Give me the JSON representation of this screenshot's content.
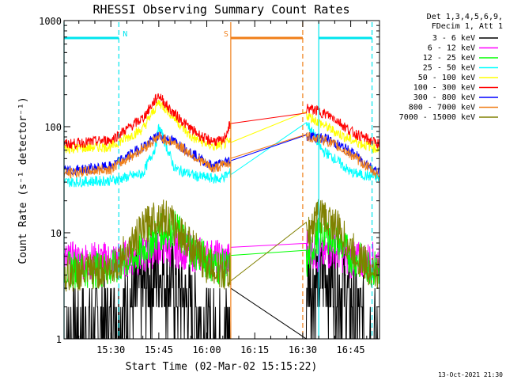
{
  "chart_data": {
    "type": "line",
    "title": "RHESSI Observing Summary Count Rates",
    "xlabel": "Start Time (02-Mar-02 15:15:22)",
    "ylabel": "Count Rate (s⁻¹ detector⁻¹)",
    "yscale": "log",
    "xlim": [
      "15:15:22",
      "16:54:00"
    ],
    "ylim": [
      1,
      1000
    ],
    "x_ticks": [
      "15:30",
      "15:45",
      "16:00",
      "16:15",
      "16:30",
      "16:45"
    ],
    "y_ticks": [
      "1",
      "10",
      "100",
      "1000"
    ],
    "legend_header": [
      "Det 1,3,4,5,6,9,",
      "FDecim 1, Att 1"
    ],
    "legend_position": "right",
    "footer": "13-Oct-2021 21:30",
    "flags": [
      {
        "label": "N",
        "color": "#00e5ee",
        "start": "15:15:22",
        "end": "15:32:30"
      },
      {
        "label": "S",
        "color": "#f07f19",
        "start": "16:07:30",
        "end": "16:30:00"
      },
      {
        "label": "",
        "color": "#00e5ee",
        "start": "16:35:00",
        "end": "16:51:40"
      }
    ],
    "vlines": [
      {
        "time": "15:15:22",
        "color": "#00e5ee",
        "style": "solid"
      },
      {
        "time": "15:32:30",
        "color": "#00e5ee",
        "style": "dashed"
      },
      {
        "time": "16:07:30",
        "color": "#f07f19",
        "style": "solid"
      },
      {
        "time": "16:30:00",
        "color": "#f07f19",
        "style": "dashed"
      },
      {
        "time": "16:35:00",
        "color": "#00e5ee",
        "style": "solid"
      },
      {
        "time": "16:51:40",
        "color": "#00e5ee",
        "style": "dashed"
      }
    ],
    "gap": {
      "start": "16:07:30",
      "end": "16:31:00"
    },
    "series": [
      {
        "name": "3 - 6 keV",
        "color": "#000000",
        "x": [
          "15:15:22",
          "15:33:00",
          "15:40:00",
          "15:45:00",
          "15:50:00",
          "15:57:00",
          "16:02:00",
          "16:32:00",
          "16:38:00",
          "16:43:00",
          "16:48:00",
          "16:53:00"
        ],
        "y": [
          1,
          1.6,
          3,
          4.5,
          3,
          1.6,
          1,
          3.5,
          4,
          3,
          1.5,
          1
        ]
      },
      {
        "name": "6 - 12 keV",
        "color": "#ff00ff",
        "x": [
          "15:15:22",
          "15:30:00",
          "15:40:00",
          "15:45:00",
          "15:50:00",
          "16:00:00",
          "16:07:00",
          "16:31:00",
          "16:35:00",
          "16:40:00",
          "16:45:00",
          "16:53:00"
        ],
        "y": [
          5.5,
          5.5,
          6,
          7.5,
          7,
          6,
          5.5,
          8,
          6,
          7,
          5.5,
          5.5
        ]
      },
      {
        "name": "12 - 25 keV",
        "color": "#00ff00",
        "x": [
          "15:15:22",
          "15:30:00",
          "15:38:00",
          "15:45:00",
          "15:50:00",
          "15:55:00",
          "16:02:00",
          "16:07:00",
          "16:31:00",
          "16:35:00",
          "16:40:00",
          "16:45:00",
          "16:53:00"
        ],
        "y": [
          4.5,
          4.5,
          6,
          10,
          11,
          7,
          5,
          4.5,
          5,
          10,
          9,
          6,
          4.5
        ]
      },
      {
        "name": "25 - 50 keV",
        "color": "#00ffff",
        "x": [
          "15:15:22",
          "15:30:00",
          "15:40:00",
          "15:44:00",
          "15:45:00",
          "15:47:00",
          "15:50:00",
          "15:57:00",
          "16:04:00",
          "16:07:00",
          "16:31:00",
          "16:33:00",
          "16:36:00",
          "16:40:00",
          "16:45:00",
          "16:53:00"
        ],
        "y": [
          30,
          31,
          36,
          65,
          100,
          70,
          40,
          34,
          32,
          36,
          110,
          90,
          60,
          50,
          37,
          33
        ]
      },
      {
        "name": "50 - 100 keV",
        "color": "#ffff00",
        "x": [
          "15:15:22",
          "15:30:00",
          "15:40:00",
          "15:45:00",
          "15:48:00",
          "15:55:00",
          "16:02:00",
          "16:07:00",
          "16:31:00",
          "16:35:00",
          "16:40:00",
          "16:45:00",
          "16:53:00"
        ],
        "y": [
          62,
          65,
          95,
          170,
          140,
          80,
          65,
          70,
          130,
          110,
          90,
          75,
          62
        ]
      },
      {
        "name": "100 - 300 keV",
        "color": "#ff0000",
        "x": [
          "15:15:22",
          "15:30:00",
          "15:40:00",
          "15:45:00",
          "15:48:00",
          "15:55:00",
          "16:00:00",
          "16:05:00",
          "16:07:00",
          "16:31:00",
          "16:35:00",
          "16:40:00",
          "16:45:00",
          "16:53:00"
        ],
        "y": [
          68,
          75,
          120,
          200,
          150,
          95,
          75,
          72,
          100,
          150,
          140,
          120,
          90,
          70
        ]
      },
      {
        "name": "300 - 800 keV",
        "color": "#0000ff",
        "x": [
          "15:15:22",
          "15:30:00",
          "15:40:00",
          "15:45:00",
          "15:50:00",
          "15:57:00",
          "16:02:00",
          "16:07:00",
          "16:31:00",
          "16:37:00",
          "16:45:00",
          "16:53:00"
        ],
        "y": [
          38,
          42,
          65,
          82,
          72,
          52,
          42,
          48,
          82,
          78,
          58,
          38
        ]
      },
      {
        "name": "800 - 7000 keV",
        "color": "#f07f19",
        "x": [
          "15:15:22",
          "15:30:00",
          "15:40:00",
          "15:45:00",
          "15:50:00",
          "15:57:00",
          "16:02:00",
          "16:07:00",
          "16:31:00",
          "16:37:00",
          "16:45:00",
          "16:53:00"
        ],
        "y": [
          36,
          40,
          62,
          80,
          70,
          50,
          40,
          46,
          80,
          75,
          55,
          36
        ]
      },
      {
        "name": "7000 - 15000 keV",
        "color": "#808000",
        "x": [
          "15:15:22",
          "15:30:00",
          "15:37:00",
          "15:43:00",
          "15:47:00",
          "15:53:00",
          "16:00:00",
          "16:07:00",
          "16:31:00",
          "16:35:00",
          "16:40:00",
          "16:45:00",
          "16:53:00"
        ],
        "y": [
          4,
          4.5,
          8,
          14,
          14,
          9,
          5,
          4,
          9,
          15,
          12,
          7,
          4
        ]
      }
    ]
  }
}
